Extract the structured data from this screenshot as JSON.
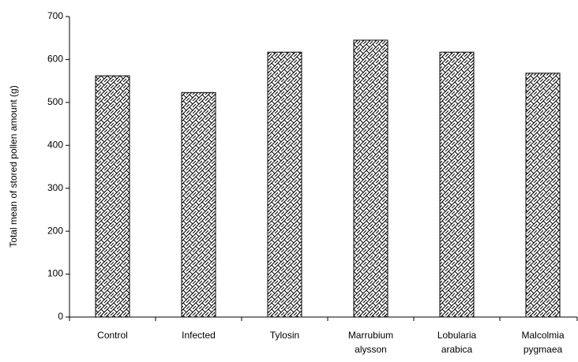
{
  "chart_data": {
    "type": "bar",
    "y_label": "Total mean of stored pollen amount (g)",
    "categories": [
      "Control",
      "Infected",
      "Tylosin",
      "Marrubium\nalysson",
      "Lobularia\narabica",
      "Malcolmia\npygmaea"
    ],
    "values": [
      562,
      523,
      617,
      645,
      617,
      568
    ],
    "color": "#000000",
    "ylim": [
      0,
      700
    ],
    "yticks": [
      0,
      100,
      200,
      300,
      400,
      500,
      600,
      700
    ],
    "grid": false
  }
}
